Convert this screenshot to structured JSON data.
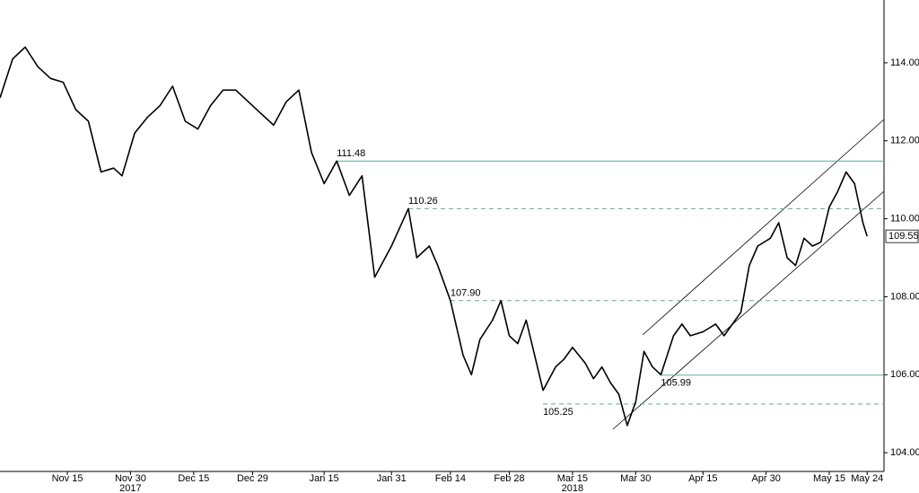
{
  "chart_data": {
    "type": "line",
    "series": [
      {
        "color": "#000000",
        "x": [
          "2017-10-30",
          "2017-11-02",
          "2017-11-05",
          "2017-11-08",
          "2017-11-11",
          "2017-11-14",
          "2017-11-17",
          "2017-11-20",
          "2017-11-23",
          "2017-11-26",
          "2017-11-28",
          "2017-12-01",
          "2017-12-04",
          "2017-12-07",
          "2017-12-10",
          "2017-12-13",
          "2017-12-16",
          "2017-12-19",
          "2017-12-22",
          "2017-12-25",
          "2017-12-28",
          "2017-12-31",
          "2018-01-03",
          "2018-01-06",
          "2018-01-09",
          "2018-01-12",
          "2018-01-15",
          "2018-01-18",
          "2018-01-21",
          "2018-01-24",
          "2018-01-27",
          "2018-01-31",
          "2018-02-04",
          "2018-02-06",
          "2018-02-09",
          "2018-02-11",
          "2018-02-14",
          "2018-02-17",
          "2018-02-19",
          "2018-02-21",
          "2018-02-24",
          "2018-02-26",
          "2018-02-28",
          "2018-03-02",
          "2018-03-04",
          "2018-03-06",
          "2018-03-08",
          "2018-03-11",
          "2018-03-13",
          "2018-03-15",
          "2018-03-18",
          "2018-03-20",
          "2018-03-22",
          "2018-03-24",
          "2018-03-26",
          "2018-03-28",
          "2018-03-30",
          "2018-04-01",
          "2018-04-03",
          "2018-04-05",
          "2018-04-08",
          "2018-04-10",
          "2018-04-12",
          "2018-04-15",
          "2018-04-18",
          "2018-04-20",
          "2018-04-22",
          "2018-04-24",
          "2018-04-26",
          "2018-04-28",
          "2018-05-01",
          "2018-05-03",
          "2018-05-05",
          "2018-05-07",
          "2018-05-09",
          "2018-05-11",
          "2018-05-13",
          "2018-05-15",
          "2018-05-17",
          "2018-05-19",
          "2018-05-21",
          "2018-05-23",
          "2018-05-24"
        ],
        "values": [
          113.1,
          114.1,
          114.4,
          113.9,
          113.6,
          113.5,
          112.8,
          112.5,
          111.2,
          111.3,
          111.1,
          112.2,
          112.6,
          112.9,
          113.4,
          112.5,
          112.3,
          112.9,
          113.3,
          113.3,
          113.0,
          112.7,
          112.4,
          113.0,
          113.3,
          111.7,
          110.9,
          111.48,
          110.6,
          111.1,
          108.5,
          109.3,
          110.26,
          109.0,
          109.3,
          108.8,
          107.9,
          106.5,
          106.0,
          106.9,
          107.4,
          107.9,
          107.0,
          106.8,
          107.4,
          106.5,
          105.6,
          106.2,
          106.4,
          106.7,
          106.3,
          105.9,
          106.2,
          105.8,
          105.5,
          104.7,
          105.3,
          106.6,
          106.2,
          106.0,
          107.0,
          107.3,
          107.0,
          107.1,
          107.3,
          107.0,
          107.3,
          107.6,
          108.8,
          109.3,
          109.5,
          109.9,
          109.0,
          108.8,
          109.5,
          109.3,
          109.4,
          110.3,
          110.7,
          111.2,
          110.9,
          109.9,
          109.55
        ]
      }
    ],
    "levels": {
      "color": "#5fae9e",
      "x": [
        "2018-01-18",
        "2018-02-04",
        "2018-02-14",
        "2018-04-05",
        "2018-03-08"
      ],
      "values": [
        111.48,
        110.26,
        107.9,
        105.99,
        105.25
      ],
      "value_labels": [
        "111.48",
        "110.26",
        "107.90",
        "105.99",
        "105.25"
      ],
      "dashed": [
        false,
        true,
        true,
        false,
        true
      ]
    },
    "xlim": [
      "2017-10-30",
      "2018-05-28"
    ],
    "xticks": [
      {
        "value": "2017-11-15",
        "label": "Nov 15"
      },
      {
        "value": "2017-11-30",
        "label": "Nov 30"
      },
      {
        "value": "2017-12-15",
        "label": "Dec 15"
      },
      {
        "value": "2017-12-29",
        "label": "Dec 29"
      },
      {
        "value": "2018-01-15",
        "label": "Jan 15"
      },
      {
        "value": "2018-01-31",
        "label": "Jan 31"
      },
      {
        "value": "2018-02-14",
        "label": "Feb 14"
      },
      {
        "value": "2018-02-28",
        "label": "Feb 28"
      },
      {
        "value": "2018-03-15",
        "label": "Mar 15"
      },
      {
        "value": "2018-03-30",
        "label": "Mar 30"
      },
      {
        "value": "2018-04-15",
        "label": "Apr 15"
      },
      {
        "value": "2018-04-30",
        "label": "Apr 30"
      },
      {
        "value": "2018-05-15",
        "label": "May 15"
      },
      {
        "value": "2018-05-24",
        "label": "May 24"
      }
    ],
    "year_labels": [
      {
        "value": "2017-11-30",
        "label": "2017"
      },
      {
        "value": "2018-03-15",
        "label": "2018"
      }
    ],
    "ylim": [
      103.52,
      115.61
    ],
    "yticks": [
      {
        "value": 104,
        "label": "104.00"
      },
      {
        "value": 106,
        "label": "106.00"
      },
      {
        "value": 108,
        "label": "108.00"
      },
      {
        "value": 110,
        "label": "110.00"
      },
      {
        "value": 112,
        "label": "112.00"
      },
      {
        "value": 114,
        "label": "114.00"
      }
    ]
  }
}
